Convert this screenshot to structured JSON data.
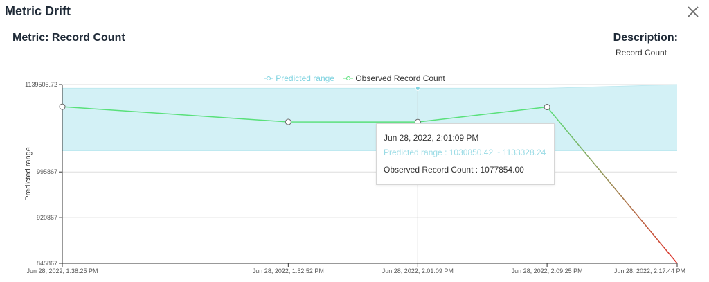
{
  "dialog": {
    "title": "Metric Drift",
    "metric_label": "Metric: Record Count",
    "description_heading": "Description:",
    "description_text": "Record Count"
  },
  "icons": {
    "close": "close-icon"
  },
  "colors": {
    "range_fill": "#d3f1f6",
    "range_stroke": "#7fd3e0",
    "observed": "#59e07a",
    "drift_end": "#e0302a",
    "axis": "#333333",
    "grid": "#dddddd"
  },
  "legend": {
    "predicted": "Predicted range",
    "observed": "Observed Record Count"
  },
  "tooltip": {
    "date": "Jun 28, 2022, 2:01:09 PM",
    "range_label": "Predicted range",
    "range_value": "1030850.42 ~ 1133328.24",
    "observed_label": "Observed Record Count",
    "observed_value": "1077854.00"
  },
  "chart_data": {
    "type": "area",
    "ylabel": "Predicted range",
    "ylim": [
      845867,
      1139505.72
    ],
    "yticks": [
      845867,
      920867,
      995867,
      1139505.72
    ],
    "ytick_labels": [
      "845867",
      "920867",
      "995867",
      "1139505.72"
    ],
    "x": [
      "Jun 28, 2022, 1:38:25 PM",
      "Jun 28, 2022, 1:52:52 PM",
      "Jun 28, 2022, 2:01:09 PM",
      "Jun 28, 2022, 2:09:25 PM",
      "Jun 28, 2022, 2:17:44 PM"
    ],
    "x_minutes": [
      0,
      14.45,
      22.73,
      31.0,
      39.32
    ],
    "series": [
      {
        "name": "Predicted range",
        "lower": [
          1030850.42,
          1030850.42,
          1030850.42,
          1030850.42,
          1030850.42
        ],
        "upper": [
          1133328.24,
          1133328.24,
          1133328.24,
          1133328.24,
          1139505.72
        ]
      },
      {
        "name": "Observed Record Count",
        "values": [
          1103000,
          1078000,
          1077854.0,
          1102500,
          845867
        ]
      }
    ],
    "grid": true,
    "legend_position": "top-center",
    "active_point": 2
  }
}
